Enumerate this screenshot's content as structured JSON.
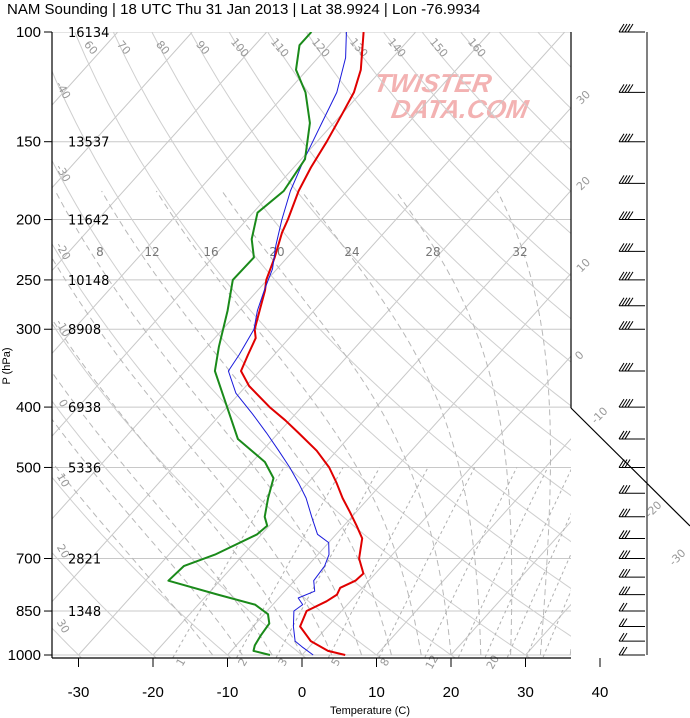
{
  "title": "NAM Sounding | 18 UTC Thu 31 Jan 2013 | Lat 38.9924 | Lon -76.9934",
  "watermark": [
    "TWISTER",
    "DATA.COM"
  ],
  "chart_data": {
    "type": "line",
    "chart_kind": "skew-T log-P sounding",
    "xlabel": "Temperature (C)",
    "ylabel": "P (hPa)",
    "x_ticks": [
      -30,
      -20,
      -10,
      0,
      10,
      20,
      30,
      40
    ],
    "y_ticks": [
      100,
      150,
      200,
      250,
      300,
      400,
      500,
      700,
      850,
      1000
    ],
    "ylim": [
      1000,
      100
    ],
    "y_scale": "log",
    "heights_m": [
      {
        "p": 100,
        "label": "16134"
      },
      {
        "p": 150,
        "label": "13537"
      },
      {
        "p": 200,
        "label": "11642"
      },
      {
        "p": 250,
        "label": "10148"
      },
      {
        "p": 300,
        "label": "8908"
      },
      {
        "p": 400,
        "label": "6938"
      },
      {
        "p": 500,
        "label": "5336"
      },
      {
        "p": 700,
        "label": "2821"
      },
      {
        "p": 850,
        "label": "1348"
      }
    ],
    "mixing_ratio_labels": [
      "8",
      "12",
      "16",
      "20",
      "24",
      "28",
      "32"
    ],
    "isotherm_labels": [
      "60",
      "70",
      "80",
      "90",
      "100",
      "110",
      "120",
      "130",
      "140",
      "150",
      "160"
    ],
    "dry_adiabat_labels_right": [
      "30",
      "20",
      "10",
      "0",
      "-10",
      "-20",
      "-30"
    ],
    "dry_adiabat_labels_left": [
      "-40",
      "-30",
      "-20",
      "-10",
      "0",
      "10",
      "20",
      "30"
    ],
    "moist_adiabat_labels": [
      "1",
      "2",
      "3",
      "5",
      "8",
      "12",
      "20"
    ],
    "series": [
      {
        "name": "",
        "color": "#e00000",
        "points": [
          {
            "p": 1000,
            "t": 5.8
          },
          {
            "p": 985,
            "t": 3.0
          },
          {
            "p": 950,
            "t": -0.5
          },
          {
            "p": 900,
            "t": -3.7
          },
          {
            "p": 850,
            "t": -4.7
          },
          {
            "p": 820,
            "t": -3.2
          },
          {
            "p": 800,
            "t": -2.6
          },
          {
            "p": 780,
            "t": -3.0
          },
          {
            "p": 760,
            "t": -1.8
          },
          {
            "p": 740,
            "t": -1.6
          },
          {
            "p": 700,
            "t": -4.0
          },
          {
            "p": 650,
            "t": -6.0
          },
          {
            "p": 620,
            "t": -8.3
          },
          {
            "p": 590,
            "t": -10.8
          },
          {
            "p": 560,
            "t": -13.5
          },
          {
            "p": 530,
            "t": -16.1
          },
          {
            "p": 500,
            "t": -19.0
          },
          {
            "p": 470,
            "t": -22.7
          },
          {
            "p": 440,
            "t": -27.3
          },
          {
            "p": 420,
            "t": -30.6
          },
          {
            "p": 400,
            "t": -34.3
          },
          {
            "p": 370,
            "t": -39.6
          },
          {
            "p": 350,
            "t": -42.5
          },
          {
            "p": 330,
            "t": -43.5
          },
          {
            "p": 310,
            "t": -44.5
          },
          {
            "p": 300,
            "t": -45.7
          },
          {
            "p": 280,
            "t": -47.3
          },
          {
            "p": 260,
            "t": -49.0
          },
          {
            "p": 250,
            "t": -50.1
          },
          {
            "p": 230,
            "t": -51.7
          },
          {
            "p": 210,
            "t": -53.7
          },
          {
            "p": 200,
            "t": -54.5
          },
          {
            "p": 180,
            "t": -56.5
          },
          {
            "p": 165,
            "t": -57.7
          },
          {
            "p": 150,
            "t": -58.7
          },
          {
            "p": 135,
            "t": -60.0
          },
          {
            "p": 125,
            "t": -61.0
          },
          {
            "p": 115,
            "t": -62.8
          },
          {
            "p": 100,
            "t": -67.0
          }
        ]
      },
      {
        "name": "",
        "color": "#1a1adc",
        "points": [
          {
            "p": 1000,
            "t": 1.5
          },
          {
            "p": 970,
            "t": -1.0
          },
          {
            "p": 950,
            "t": -2.6
          },
          {
            "p": 900,
            "t": -4.6
          },
          {
            "p": 850,
            "t": -6.4
          },
          {
            "p": 830,
            "t": -6.0
          },
          {
            "p": 810,
            "t": -7.4
          },
          {
            "p": 790,
            "t": -6.0
          },
          {
            "p": 760,
            "t": -7.4
          },
          {
            "p": 720,
            "t": -7.7
          },
          {
            "p": 690,
            "t": -8.5
          },
          {
            "p": 660,
            "t": -10.0
          },
          {
            "p": 640,
            "t": -12.5
          },
          {
            "p": 600,
            "t": -15.4
          },
          {
            "p": 560,
            "t": -18.4
          },
          {
            "p": 530,
            "t": -21.2
          },
          {
            "p": 500,
            "t": -24.3
          },
          {
            "p": 470,
            "t": -27.8
          },
          {
            "p": 440,
            "t": -31.6
          },
          {
            "p": 410,
            "t": -35.8
          },
          {
            "p": 380,
            "t": -40.5
          },
          {
            "p": 350,
            "t": -44.2
          },
          {
            "p": 330,
            "t": -44.7
          },
          {
            "p": 300,
            "t": -45.8
          },
          {
            "p": 280,
            "t": -47.6
          },
          {
            "p": 260,
            "t": -49.1
          },
          {
            "p": 240,
            "t": -50.6
          },
          {
            "p": 220,
            "t": -53.0
          },
          {
            "p": 200,
            "t": -55.3
          },
          {
            "p": 180,
            "t": -57.6
          },
          {
            "p": 160,
            "t": -59.6
          },
          {
            "p": 140,
            "t": -61.6
          },
          {
            "p": 125,
            "t": -63.3
          },
          {
            "p": 110,
            "t": -66.3
          },
          {
            "p": 100,
            "t": -69.3
          }
        ]
      },
      {
        "name": "",
        "color": "#1a8a1a",
        "points": [
          {
            "p": 1000,
            "t": -4.3
          },
          {
            "p": 985,
            "t": -7.0
          },
          {
            "p": 965,
            "t": -7.5
          },
          {
            "p": 930,
            "t": -7.9
          },
          {
            "p": 890,
            "t": -8.2
          },
          {
            "p": 860,
            "t": -9.5
          },
          {
            "p": 830,
            "t": -12.4
          },
          {
            "p": 800,
            "t": -18.6
          },
          {
            "p": 760,
            "t": -26.9
          },
          {
            "p": 720,
            "t": -26.6
          },
          {
            "p": 690,
            "t": -23.8
          },
          {
            "p": 640,
            "t": -20.6
          },
          {
            "p": 620,
            "t": -20.3
          },
          {
            "p": 600,
            "t": -21.7
          },
          {
            "p": 560,
            "t": -23.5
          },
          {
            "p": 520,
            "t": -25.2
          },
          {
            "p": 490,
            "t": -28.3
          },
          {
            "p": 450,
            "t": -34.7
          },
          {
            "p": 400,
            "t": -40.0
          },
          {
            "p": 350,
            "t": -46.0
          },
          {
            "p": 320,
            "t": -48.4
          },
          {
            "p": 280,
            "t": -51.6
          },
          {
            "p": 250,
            "t": -54.6
          },
          {
            "p": 230,
            "t": -54.5
          },
          {
            "p": 215,
            "t": -57.0
          },
          {
            "p": 195,
            "t": -59.4
          },
          {
            "p": 180,
            "t": -58.5
          },
          {
            "p": 160,
            "t": -59.5
          },
          {
            "p": 140,
            "t": -63.2
          },
          {
            "p": 125,
            "t": -67.5
          },
          {
            "p": 115,
            "t": -71.5
          },
          {
            "p": 105,
            "t": -74.0
          },
          {
            "p": 100,
            "t": -74.0
          }
        ]
      }
    ],
    "wind_barbs_p": [
      1000,
      950,
      900,
      850,
      800,
      750,
      700,
      650,
      600,
      550,
      500,
      450,
      400,
      350,
      300,
      275,
      250,
      225,
      200,
      175,
      150,
      125,
      100
    ]
  }
}
